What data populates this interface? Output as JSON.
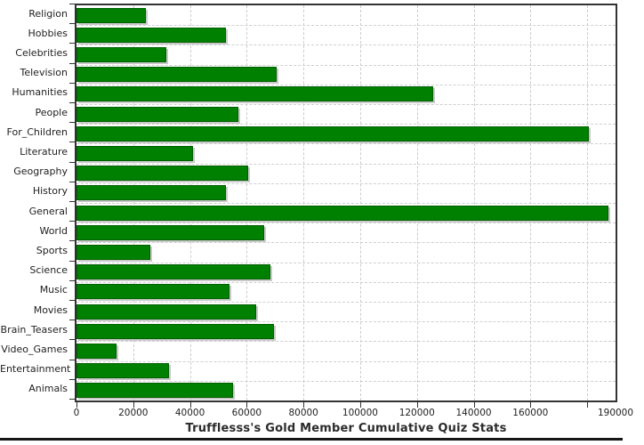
{
  "chart_data": {
    "type": "bar",
    "orientation": "horizontal",
    "title": "Trufflesss's Gold Member Cumulative Quiz Stats",
    "categories": [
      "Religion",
      "Hobbies",
      "Celebrities",
      "Television",
      "Humanities",
      "People",
      "For_Children",
      "Literature",
      "Geography",
      "History",
      "General",
      "World",
      "Sports",
      "Science",
      "Music",
      "Movies",
      "Brain_Teasers",
      "Video_Games",
      "Entertainment",
      "Animals"
    ],
    "values": [
      24600,
      52600,
      31800,
      70400,
      125800,
      57000,
      180600,
      41100,
      60400,
      52600,
      187500,
      66000,
      25900,
      68200,
      53900,
      63200,
      69500,
      14000,
      32700,
      55100
    ],
    "xlim": [
      0,
      190000
    ],
    "x_tick_interval": 20000,
    "x_tick_labels": [
      "0",
      "20000",
      "40000",
      "60000",
      "80000",
      "100000",
      "120000",
      "140000",
      "160000"
    ],
    "x_end_label": "190000",
    "grid": true,
    "legend": "none",
    "bar_color": "#008000",
    "bar_border_color": "#006000",
    "bar_shadow_color": "#c9c9c9",
    "grid_color": "#cccccc",
    "frame_color": "#333333",
    "text_color": "#222222"
  }
}
